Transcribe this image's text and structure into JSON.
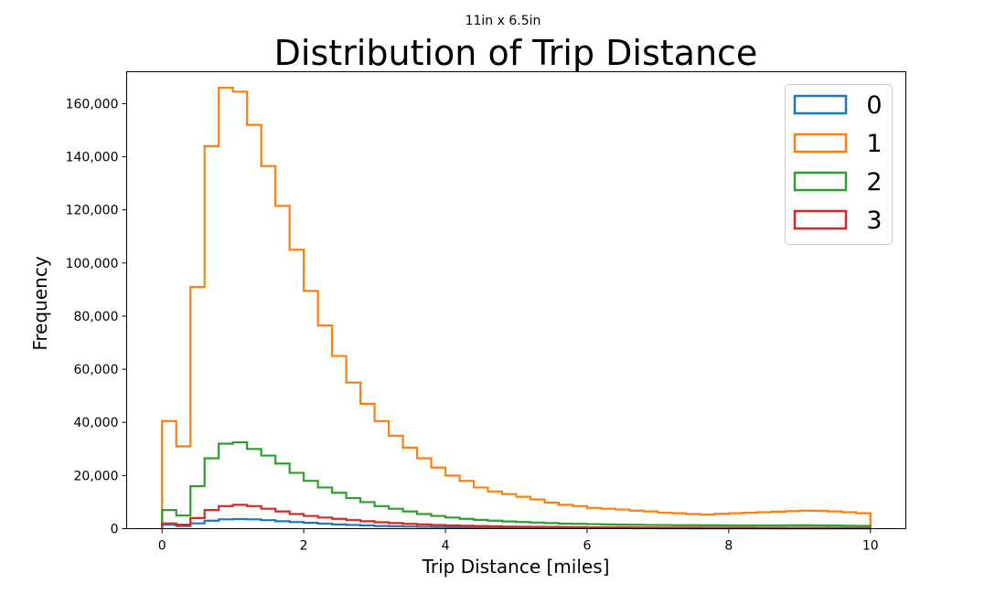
{
  "figure": {
    "size_label": "11in x 6.5in"
  },
  "chart_data": {
    "type": "histogram-step",
    "title": "Distribution of Trip Distance",
    "xlabel": "Trip Distance [miles]",
    "ylabel": "Frequency",
    "xlim": [
      -0.5,
      10.5
    ],
    "ylim": [
      0,
      172000
    ],
    "xticks": [
      0,
      2,
      4,
      6,
      8,
      10
    ],
    "yticks": [
      0,
      20000,
      40000,
      60000,
      80000,
      100000,
      120000,
      140000,
      160000
    ],
    "ytick_labels": [
      "0",
      "20,000",
      "40,000",
      "60,000",
      "80,000",
      "100,000",
      "120,000",
      "140,000",
      "160,000"
    ],
    "bin_edges_start": 0,
    "bin_width": 0.2,
    "legend_position": "top-right",
    "grid": false,
    "series": [
      {
        "name": "0",
        "color": "#1f77b4",
        "values": [
          1500,
          1000,
          2000,
          3000,
          3500,
          3600,
          3500,
          3200,
          2800,
          2500,
          2200,
          1900,
          1600,
          1400,
          1200,
          1000,
          900,
          800,
          700,
          600,
          550,
          500,
          450,
          400,
          350,
          320,
          300,
          280,
          260,
          240,
          220,
          200,
          190,
          180,
          170,
          160,
          150,
          140,
          130,
          120,
          110,
          105,
          100,
          95,
          90,
          85,
          80,
          75,
          70,
          65
        ]
      },
      {
        "name": "1",
        "color": "#ff7f0e",
        "values": [
          40500,
          31000,
          91000,
          144000,
          166000,
          164500,
          152000,
          136500,
          121500,
          105000,
          89500,
          76500,
          65000,
          55000,
          47000,
          40500,
          35000,
          30500,
          26500,
          23000,
          20000,
          18000,
          15500,
          14000,
          13000,
          12000,
          11000,
          9800,
          9000,
          8500,
          7800,
          7500,
          7200,
          6800,
          6500,
          6000,
          5800,
          5500,
          5300,
          5600,
          5800,
          6000,
          6200,
          6400,
          6600,
          6800,
          6700,
          6500,
          6200,
          5800
        ]
      },
      {
        "name": "2",
        "color": "#2ca02c",
        "values": [
          7000,
          5000,
          16000,
          26500,
          32000,
          32500,
          30000,
          27500,
          24500,
          21000,
          18000,
          15500,
          13500,
          11500,
          10000,
          8500,
          7500,
          6500,
          5500,
          4800,
          4200,
          3700,
          3300,
          3000,
          2700,
          2500,
          2300,
          2100,
          1900,
          1800,
          1700,
          1600,
          1500,
          1450,
          1400,
          1350,
          1300,
          1300,
          1250,
          1250,
          1200,
          1200,
          1200,
          1200,
          1250,
          1250,
          1200,
          1150,
          1100,
          1050
        ]
      },
      {
        "name": "3",
        "color": "#d62728",
        "values": [
          2000,
          1500,
          4000,
          7000,
          8500,
          9000,
          8500,
          7500,
          6500,
          5500,
          4800,
          4200,
          3700,
          3200,
          2800,
          2400,
          2100,
          1800,
          1600,
          1400,
          1200,
          1100,
          1000,
          900,
          800,
          750,
          700,
          650,
          600,
          550,
          500,
          480,
          460,
          440,
          420,
          400,
          390,
          380,
          370,
          360,
          350,
          340,
          330,
          320,
          310,
          300,
          290,
          280,
          270,
          260
        ]
      }
    ]
  }
}
